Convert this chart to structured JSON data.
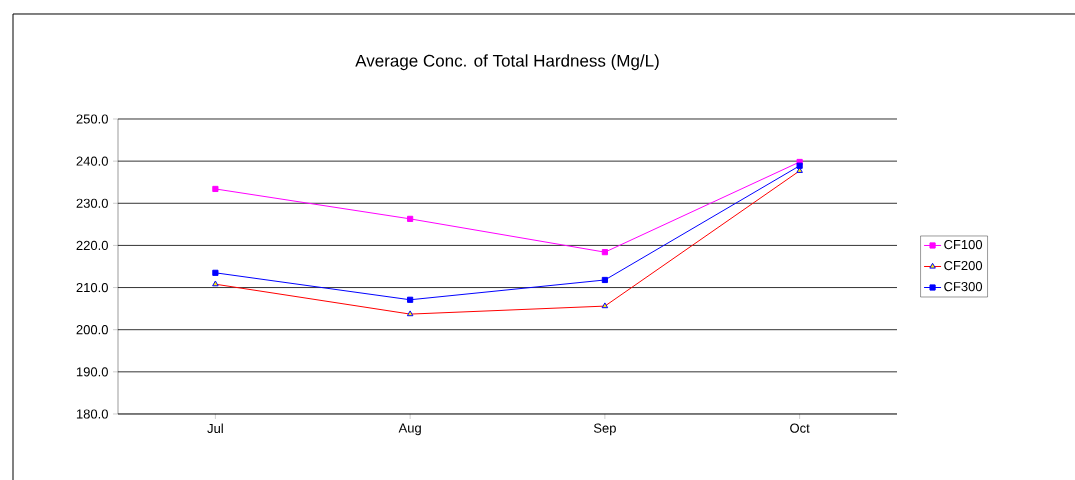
{
  "chart_data": {
    "type": "line",
    "title": "Average Conc. of Total Hardness (Mg/L)",
    "categories": [
      "Jul",
      "Aug",
      "Sep",
      "Oct"
    ],
    "series": [
      {
        "name": "CF100",
        "color": "#ff00ff",
        "marker": "square",
        "values": [
          233.4,
          226.3,
          218.4,
          239.8
        ]
      },
      {
        "name": "CF200",
        "color": "#ff0000",
        "marker": "triangle",
        "values": [
          210.8,
          203.7,
          205.6,
          237.7
        ]
      },
      {
        "name": "CF300",
        "color": "#0000ff",
        "marker": "square",
        "values": [
          213.5,
          207.1,
          211.8,
          238.9
        ]
      }
    ],
    "ylim": [
      180,
      250
    ],
    "yticks": [
      {
        "value": 180,
        "label": "180.0"
      },
      {
        "value": 190,
        "label": "190.0"
      },
      {
        "value": 200,
        "label": "200.0"
      },
      {
        "value": 210,
        "label": "210.0"
      },
      {
        "value": 220,
        "label": "220.0"
      },
      {
        "value": 230,
        "label": "230.0"
      },
      {
        "value": 240,
        "label": "240.0"
      },
      {
        "value": 250,
        "label": "250.0"
      }
    ],
    "grid": "y",
    "legend": "right"
  }
}
